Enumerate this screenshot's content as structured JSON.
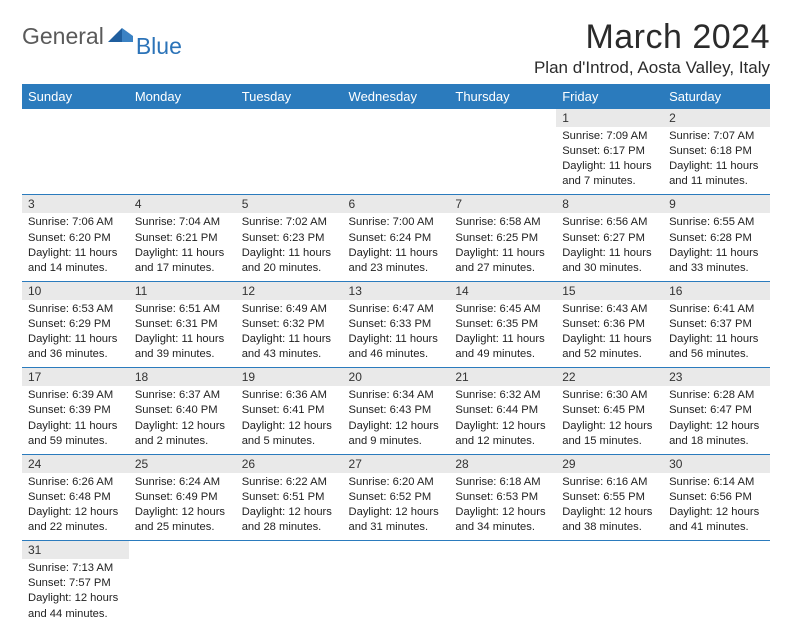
{
  "logo": {
    "word1": "General",
    "word2": "Blue",
    "mark_color": "#1f5e9e",
    "word2_color": "#2b73b8"
  },
  "header": {
    "month_title": "March 2024",
    "location": "Plan d'Introd, Aosta Valley, Italy"
  },
  "colors": {
    "header_bg": "#2b7bbd",
    "row_rule": "#2b7bbd",
    "daynum_bg": "#e9e9e9"
  },
  "weekdays": [
    "Sunday",
    "Monday",
    "Tuesday",
    "Wednesday",
    "Thursday",
    "Friday",
    "Saturday"
  ],
  "weeks": [
    [
      null,
      null,
      null,
      null,
      null,
      {
        "n": "1",
        "sunrise": "7:09 AM",
        "sunset": "6:17 PM",
        "daylight": "11 hours and 7 minutes."
      },
      {
        "n": "2",
        "sunrise": "7:07 AM",
        "sunset": "6:18 PM",
        "daylight": "11 hours and 11 minutes."
      }
    ],
    [
      {
        "n": "3",
        "sunrise": "7:06 AM",
        "sunset": "6:20 PM",
        "daylight": "11 hours and 14 minutes."
      },
      {
        "n": "4",
        "sunrise": "7:04 AM",
        "sunset": "6:21 PM",
        "daylight": "11 hours and 17 minutes."
      },
      {
        "n": "5",
        "sunrise": "7:02 AM",
        "sunset": "6:23 PM",
        "daylight": "11 hours and 20 minutes."
      },
      {
        "n": "6",
        "sunrise": "7:00 AM",
        "sunset": "6:24 PM",
        "daylight": "11 hours and 23 minutes."
      },
      {
        "n": "7",
        "sunrise": "6:58 AM",
        "sunset": "6:25 PM",
        "daylight": "11 hours and 27 minutes."
      },
      {
        "n": "8",
        "sunrise": "6:56 AM",
        "sunset": "6:27 PM",
        "daylight": "11 hours and 30 minutes."
      },
      {
        "n": "9",
        "sunrise": "6:55 AM",
        "sunset": "6:28 PM",
        "daylight": "11 hours and 33 minutes."
      }
    ],
    [
      {
        "n": "10",
        "sunrise": "6:53 AM",
        "sunset": "6:29 PM",
        "daylight": "11 hours and 36 minutes."
      },
      {
        "n": "11",
        "sunrise": "6:51 AM",
        "sunset": "6:31 PM",
        "daylight": "11 hours and 39 minutes."
      },
      {
        "n": "12",
        "sunrise": "6:49 AM",
        "sunset": "6:32 PM",
        "daylight": "11 hours and 43 minutes."
      },
      {
        "n": "13",
        "sunrise": "6:47 AM",
        "sunset": "6:33 PM",
        "daylight": "11 hours and 46 minutes."
      },
      {
        "n": "14",
        "sunrise": "6:45 AM",
        "sunset": "6:35 PM",
        "daylight": "11 hours and 49 minutes."
      },
      {
        "n": "15",
        "sunrise": "6:43 AM",
        "sunset": "6:36 PM",
        "daylight": "11 hours and 52 minutes."
      },
      {
        "n": "16",
        "sunrise": "6:41 AM",
        "sunset": "6:37 PM",
        "daylight": "11 hours and 56 minutes."
      }
    ],
    [
      {
        "n": "17",
        "sunrise": "6:39 AM",
        "sunset": "6:39 PM",
        "daylight": "11 hours and 59 minutes."
      },
      {
        "n": "18",
        "sunrise": "6:37 AM",
        "sunset": "6:40 PM",
        "daylight": "12 hours and 2 minutes."
      },
      {
        "n": "19",
        "sunrise": "6:36 AM",
        "sunset": "6:41 PM",
        "daylight": "12 hours and 5 minutes."
      },
      {
        "n": "20",
        "sunrise": "6:34 AM",
        "sunset": "6:43 PM",
        "daylight": "12 hours and 9 minutes."
      },
      {
        "n": "21",
        "sunrise": "6:32 AM",
        "sunset": "6:44 PM",
        "daylight": "12 hours and 12 minutes."
      },
      {
        "n": "22",
        "sunrise": "6:30 AM",
        "sunset": "6:45 PM",
        "daylight": "12 hours and 15 minutes."
      },
      {
        "n": "23",
        "sunrise": "6:28 AM",
        "sunset": "6:47 PM",
        "daylight": "12 hours and 18 minutes."
      }
    ],
    [
      {
        "n": "24",
        "sunrise": "6:26 AM",
        "sunset": "6:48 PM",
        "daylight": "12 hours and 22 minutes."
      },
      {
        "n": "25",
        "sunrise": "6:24 AM",
        "sunset": "6:49 PM",
        "daylight": "12 hours and 25 minutes."
      },
      {
        "n": "26",
        "sunrise": "6:22 AM",
        "sunset": "6:51 PM",
        "daylight": "12 hours and 28 minutes."
      },
      {
        "n": "27",
        "sunrise": "6:20 AM",
        "sunset": "6:52 PM",
        "daylight": "12 hours and 31 minutes."
      },
      {
        "n": "28",
        "sunrise": "6:18 AM",
        "sunset": "6:53 PM",
        "daylight": "12 hours and 34 minutes."
      },
      {
        "n": "29",
        "sunrise": "6:16 AM",
        "sunset": "6:55 PM",
        "daylight": "12 hours and 38 minutes."
      },
      {
        "n": "30",
        "sunrise": "6:14 AM",
        "sunset": "6:56 PM",
        "daylight": "12 hours and 41 minutes."
      }
    ],
    [
      {
        "n": "31",
        "sunrise": "7:13 AM",
        "sunset": "7:57 PM",
        "daylight": "12 hours and 44 minutes."
      },
      null,
      null,
      null,
      null,
      null,
      null
    ]
  ],
  "labels": {
    "sunrise": "Sunrise: ",
    "sunset": "Sunset: ",
    "daylight": "Daylight: "
  }
}
